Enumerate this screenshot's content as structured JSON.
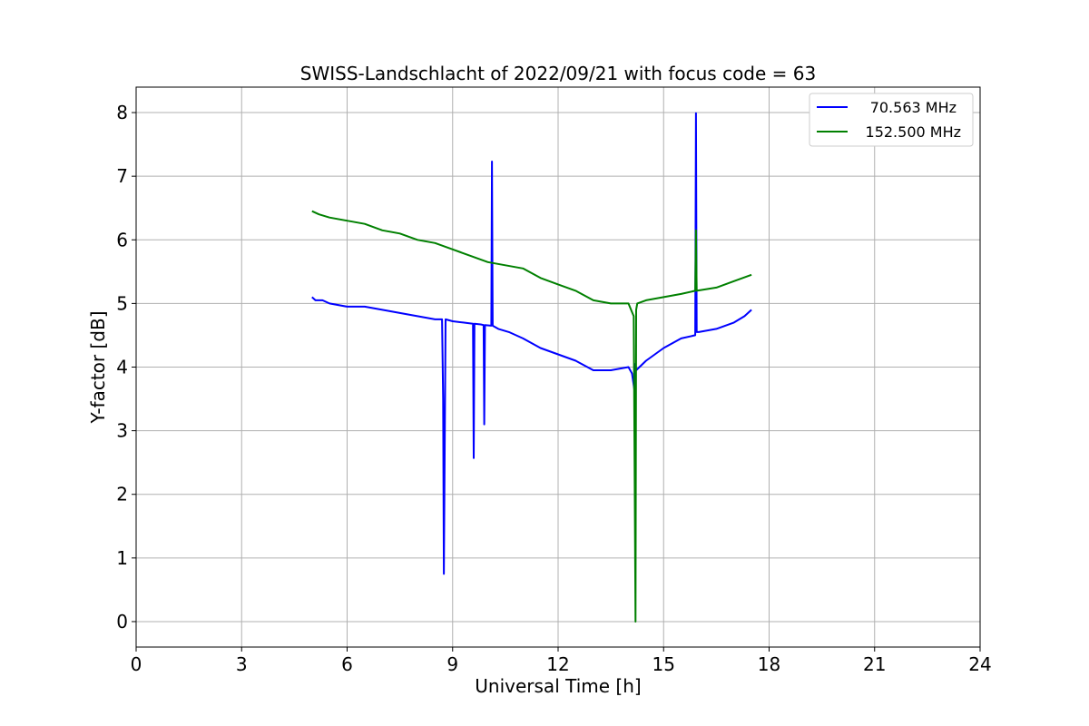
{
  "chart_data": {
    "type": "line",
    "title": "SWISS-Landschlacht of 2022/09/21 with focus code = 63",
    "xlabel": "Universal Time [h]",
    "ylabel": "Y-factor [dB]",
    "xlim": [
      0,
      24
    ],
    "ylim": [
      -0.4,
      8.4
    ],
    "xticks": [
      0,
      3,
      6,
      9,
      12,
      15,
      18,
      21,
      24
    ],
    "yticks": [
      0,
      1,
      2,
      3,
      4,
      5,
      6,
      7,
      8
    ],
    "xtick_labels": [
      "0",
      "3",
      "6",
      "9",
      "12",
      "15",
      "18",
      "21",
      "24"
    ],
    "ytick_labels": [
      "0",
      "1",
      "2",
      "3",
      "4",
      "5",
      "6",
      "7",
      "8"
    ],
    "grid": true,
    "legend_position": "top-right",
    "series": [
      {
        "name": "70.563 MHz",
        "color": "#0000ff",
        "x": [
          5.0,
          5.1,
          5.3,
          5.5,
          6.0,
          6.5,
          7.0,
          7.5,
          8.0,
          8.5,
          8.7,
          8.73,
          8.75,
          8.8,
          9.0,
          9.3,
          9.58,
          9.6,
          9.62,
          9.8,
          9.88,
          9.9,
          9.92,
          10.1,
          10.12,
          10.14,
          10.3,
          10.6,
          11.0,
          11.5,
          12.0,
          12.5,
          13.0,
          13.5,
          14.0,
          14.1,
          14.18,
          14.2,
          14.22,
          14.5,
          15.0,
          15.5,
          15.9,
          15.92,
          15.94,
          16.0,
          16.5,
          17.0,
          17.3,
          17.5
        ],
        "values": [
          5.1,
          5.05,
          5.05,
          5.0,
          4.95,
          4.95,
          4.9,
          4.85,
          4.8,
          4.75,
          4.75,
          3.5,
          0.75,
          4.75,
          4.72,
          4.7,
          4.68,
          2.57,
          4.68,
          4.67,
          4.66,
          3.1,
          4.66,
          4.65,
          7.23,
          4.65,
          4.6,
          4.55,
          4.45,
          4.3,
          4.2,
          4.1,
          3.95,
          3.95,
          4.0,
          3.9,
          3.6,
          4.05,
          3.95,
          4.1,
          4.3,
          4.45,
          4.5,
          7.99,
          4.55,
          4.55,
          4.6,
          4.7,
          4.8,
          4.9
        ]
      },
      {
        "name": "152.500 MHz",
        "color": "#008000",
        "x": [
          5.0,
          5.2,
          5.5,
          6.0,
          6.5,
          7.0,
          7.5,
          8.0,
          8.5,
          9.0,
          9.5,
          10.0,
          10.5,
          11.0,
          11.5,
          12.0,
          12.5,
          13.0,
          13.5,
          14.0,
          14.15,
          14.2,
          14.22,
          14.25,
          14.5,
          15.0,
          15.5,
          15.9,
          15.92,
          15.94,
          16.5,
          17.0,
          17.5
        ],
        "values": [
          6.45,
          6.4,
          6.35,
          6.3,
          6.25,
          6.15,
          6.1,
          6.0,
          5.95,
          5.85,
          5.75,
          5.65,
          5.6,
          5.55,
          5.4,
          5.3,
          5.2,
          5.05,
          5.0,
          5.0,
          4.8,
          0.0,
          4.9,
          5.0,
          5.05,
          5.1,
          5.15,
          5.2,
          6.15,
          5.2,
          5.25,
          5.35,
          5.45
        ]
      }
    ]
  }
}
